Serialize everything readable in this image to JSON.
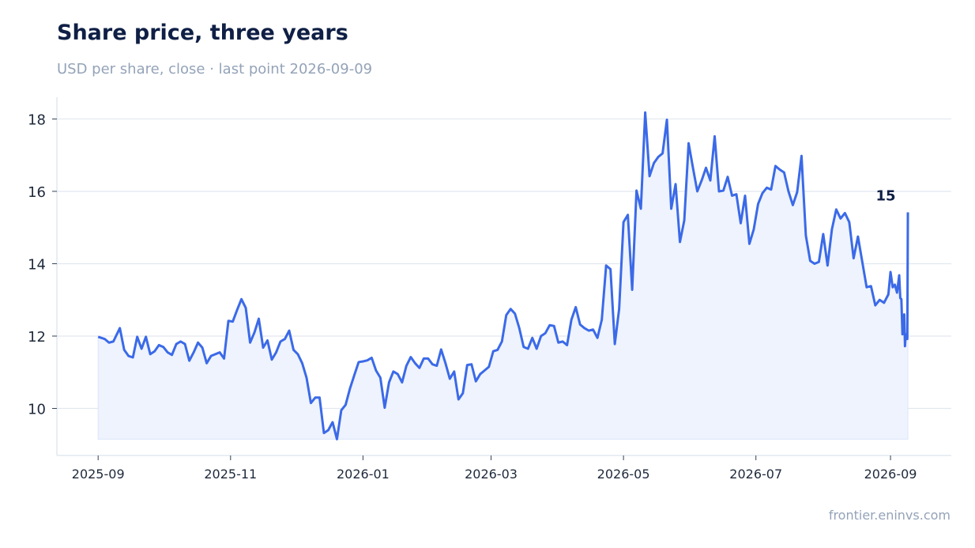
{
  "header": {
    "title": "Share price, three years",
    "subtitle": "USD per share, close · last point 2026-09-09"
  },
  "footer": {
    "source": "frontier.eninvs.com"
  },
  "colors": {
    "line": "#3b6ae8",
    "fill": "#eef3fd",
    "grid": "#e2e8f0",
    "axis": "#e2e8f0",
    "title": "#0f1f45",
    "muted": "#94a3b8"
  },
  "chart_data": {
    "type": "area",
    "title": "Share price, three years",
    "subtitle": "USD per share, close · last point 2026-09-09",
    "xlabel": "",
    "ylabel": "",
    "x_range": [
      "2025-08-13",
      "2026-09-29"
    ],
    "ylim": [
      8.7,
      18.6
    ],
    "y_ticks": [
      10,
      12,
      14,
      16,
      18
    ],
    "x_ticks": [
      "2025-09",
      "2025-11",
      "2026-01",
      "2026-03",
      "2026-05",
      "2026-07",
      "2026-09"
    ],
    "grid": "horizontal",
    "end_label": "15",
    "series": [
      {
        "values": [
          [
            "2025-09-01",
            11.98
          ],
          [
            "2025-09-04",
            11.92
          ],
          [
            "2025-09-06",
            11.82
          ],
          [
            "2025-09-08",
            11.85
          ],
          [
            "2025-09-11",
            12.22
          ],
          [
            "2025-09-13",
            11.62
          ],
          [
            "2025-09-15",
            11.45
          ],
          [
            "2025-09-17",
            11.41
          ],
          [
            "2025-09-19",
            11.98
          ],
          [
            "2025-09-21",
            11.65
          ],
          [
            "2025-09-23",
            11.98
          ],
          [
            "2025-09-25",
            11.5
          ],
          [
            "2025-09-27",
            11.58
          ],
          [
            "2025-09-29",
            11.75
          ],
          [
            "2025-10-01",
            11.7
          ],
          [
            "2025-10-03",
            11.55
          ],
          [
            "2025-10-05",
            11.48
          ],
          [
            "2025-10-07",
            11.78
          ],
          [
            "2025-10-09",
            11.85
          ],
          [
            "2025-10-11",
            11.78
          ],
          [
            "2025-10-13",
            11.32
          ],
          [
            "2025-10-15",
            11.55
          ],
          [
            "2025-10-17",
            11.82
          ],
          [
            "2025-10-19",
            11.68
          ],
          [
            "2025-10-21",
            11.25
          ],
          [
            "2025-10-23",
            11.45
          ],
          [
            "2025-10-25",
            11.5
          ],
          [
            "2025-10-27",
            11.55
          ],
          [
            "2025-10-29",
            11.38
          ],
          [
            "2025-10-31",
            12.42
          ],
          [
            "2025-11-02",
            12.4
          ],
          [
            "2025-11-04",
            12.72
          ],
          [
            "2025-11-06",
            13.02
          ],
          [
            "2025-11-08",
            12.78
          ],
          [
            "2025-11-10",
            11.82
          ],
          [
            "2025-11-12",
            12.1
          ],
          [
            "2025-11-14",
            12.48
          ],
          [
            "2025-11-16",
            11.68
          ],
          [
            "2025-11-18",
            11.88
          ],
          [
            "2025-11-20",
            11.35
          ],
          [
            "2025-11-22",
            11.55
          ],
          [
            "2025-11-24",
            11.85
          ],
          [
            "2025-11-26",
            11.92
          ],
          [
            "2025-11-28",
            12.15
          ],
          [
            "2025-11-30",
            11.62
          ],
          [
            "2025-12-02",
            11.5
          ],
          [
            "2025-12-04",
            11.25
          ],
          [
            "2025-12-06",
            10.85
          ],
          [
            "2025-12-08",
            10.15
          ],
          [
            "2025-12-10",
            10.3
          ],
          [
            "2025-12-12",
            10.3
          ],
          [
            "2025-12-14",
            9.32
          ],
          [
            "2025-12-16",
            9.4
          ],
          [
            "2025-12-18",
            9.62
          ],
          [
            "2025-12-20",
            9.15
          ],
          [
            "2025-12-22",
            9.95
          ],
          [
            "2025-12-24",
            10.1
          ],
          [
            "2025-12-26",
            10.55
          ],
          [
            "2025-12-28",
            10.92
          ],
          [
            "2025-12-30",
            11.28
          ],
          [
            "2026-01-01",
            11.3
          ],
          [
            "2026-01-03",
            11.33
          ],
          [
            "2026-01-05",
            11.4
          ],
          [
            "2026-01-07",
            11.05
          ],
          [
            "2026-01-09",
            10.85
          ],
          [
            "2026-01-11",
            10.02
          ],
          [
            "2026-01-13",
            10.72
          ],
          [
            "2026-01-15",
            11.02
          ],
          [
            "2026-01-17",
            10.95
          ],
          [
            "2026-01-19",
            10.72
          ],
          [
            "2026-01-21",
            11.18
          ],
          [
            "2026-01-23",
            11.42
          ],
          [
            "2026-01-25",
            11.25
          ],
          [
            "2026-01-27",
            11.12
          ],
          [
            "2026-01-29",
            11.38
          ],
          [
            "2026-01-31",
            11.38
          ],
          [
            "2026-02-02",
            11.22
          ],
          [
            "2026-02-04",
            11.18
          ],
          [
            "2026-02-06",
            11.63
          ],
          [
            "2026-02-08",
            11.25
          ],
          [
            "2026-02-10",
            10.82
          ],
          [
            "2026-02-12",
            11.02
          ],
          [
            "2026-02-14",
            10.25
          ],
          [
            "2026-02-16",
            10.42
          ],
          [
            "2026-02-18",
            11.2
          ],
          [
            "2026-02-20",
            11.22
          ],
          [
            "2026-02-22",
            10.75
          ],
          [
            "2026-02-24",
            10.95
          ],
          [
            "2026-02-26",
            11.05
          ],
          [
            "2026-02-28",
            11.15
          ],
          [
            "2026-03-02",
            11.58
          ],
          [
            "2026-03-04",
            11.62
          ],
          [
            "2026-03-06",
            11.85
          ],
          [
            "2026-03-08",
            12.58
          ],
          [
            "2026-03-10",
            12.75
          ],
          [
            "2026-03-12",
            12.62
          ],
          [
            "2026-03-14",
            12.22
          ],
          [
            "2026-03-16",
            11.7
          ],
          [
            "2026-03-18",
            11.65
          ],
          [
            "2026-03-20",
            11.95
          ],
          [
            "2026-03-22",
            11.65
          ],
          [
            "2026-03-24",
            12.0
          ],
          [
            "2026-03-26",
            12.08
          ],
          [
            "2026-03-28",
            12.3
          ],
          [
            "2026-03-30",
            12.28
          ],
          [
            "2026-04-01",
            11.82
          ],
          [
            "2026-04-03",
            11.85
          ],
          [
            "2026-04-05",
            11.75
          ],
          [
            "2026-04-07",
            12.45
          ],
          [
            "2026-04-09",
            12.8
          ],
          [
            "2026-04-11",
            12.32
          ],
          [
            "2026-04-13",
            12.22
          ],
          [
            "2026-04-15",
            12.15
          ],
          [
            "2026-04-17",
            12.18
          ],
          [
            "2026-04-19",
            11.95
          ],
          [
            "2026-04-21",
            12.45
          ],
          [
            "2026-04-23",
            13.95
          ],
          [
            "2026-04-25",
            13.85
          ],
          [
            "2026-04-27",
            11.78
          ],
          [
            "2026-04-29",
            12.75
          ],
          [
            "2026-05-01",
            15.15
          ],
          [
            "2026-05-03",
            15.35
          ],
          [
            "2026-05-05",
            13.28
          ],
          [
            "2026-05-07",
            16.02
          ],
          [
            "2026-05-09",
            15.52
          ],
          [
            "2026-05-11",
            18.18
          ],
          [
            "2026-05-13",
            16.42
          ],
          [
            "2026-05-15",
            16.78
          ],
          [
            "2026-05-17",
            16.95
          ],
          [
            "2026-05-19",
            17.05
          ],
          [
            "2026-05-21",
            17.98
          ],
          [
            "2026-05-23",
            15.52
          ],
          [
            "2026-05-25",
            16.2
          ],
          [
            "2026-05-27",
            14.6
          ],
          [
            "2026-05-29",
            15.2
          ],
          [
            "2026-05-31",
            17.33
          ],
          [
            "2026-06-02",
            16.65
          ],
          [
            "2026-06-04",
            16.0
          ],
          [
            "2026-06-06",
            16.3
          ],
          [
            "2026-06-08",
            16.65
          ],
          [
            "2026-06-10",
            16.3
          ],
          [
            "2026-06-12",
            17.52
          ],
          [
            "2026-06-14",
            16.0
          ],
          [
            "2026-06-16",
            16.02
          ],
          [
            "2026-06-18",
            16.4
          ],
          [
            "2026-06-20",
            15.88
          ],
          [
            "2026-06-22",
            15.92
          ],
          [
            "2026-06-24",
            15.12
          ],
          [
            "2026-06-26",
            15.88
          ],
          [
            "2026-06-28",
            14.55
          ],
          [
            "2026-06-30",
            14.95
          ],
          [
            "2026-07-02",
            15.65
          ],
          [
            "2026-07-04",
            15.95
          ],
          [
            "2026-07-06",
            16.1
          ],
          [
            "2026-07-08",
            16.05
          ],
          [
            "2026-07-10",
            16.7
          ],
          [
            "2026-07-12",
            16.6
          ],
          [
            "2026-07-14",
            16.52
          ],
          [
            "2026-07-16",
            16.0
          ],
          [
            "2026-07-18",
            15.62
          ],
          [
            "2026-07-20",
            15.98
          ],
          [
            "2026-07-22",
            16.98
          ],
          [
            "2026-07-24",
            14.78
          ],
          [
            "2026-07-26",
            14.08
          ],
          [
            "2026-07-28",
            14.0
          ],
          [
            "2026-07-30",
            14.05
          ],
          [
            "2026-08-01",
            14.82
          ],
          [
            "2026-08-03",
            13.95
          ],
          [
            "2026-08-05",
            14.95
          ],
          [
            "2026-08-07",
            15.5
          ],
          [
            "2026-08-09",
            15.25
          ],
          [
            "2026-08-11",
            15.4
          ],
          [
            "2026-08-13",
            15.15
          ],
          [
            "2026-08-15",
            14.15
          ],
          [
            "2026-08-17",
            14.75
          ],
          [
            "2026-08-19",
            14.05
          ],
          [
            "2026-08-21",
            13.35
          ],
          [
            "2026-08-23",
            13.38
          ],
          [
            "2026-08-25",
            12.85
          ],
          [
            "2026-08-27",
            13.0
          ],
          [
            "2026-08-29",
            12.92
          ],
          [
            "2026-08-31",
            13.15
          ],
          [
            "2026-09-01",
            13.77
          ],
          [
            "2026-09-02",
            13.35
          ],
          [
            "2026-09-03",
            13.42
          ],
          [
            "2026-09-04",
            13.2
          ],
          [
            "2026-09-05",
            13.68
          ],
          [
            "2026-09-05",
            13.05
          ],
          [
            "2026-09-06",
            13.02
          ],
          [
            "2026-09-06",
            12.05
          ],
          [
            "2026-09-07",
            12.45
          ],
          [
            "2026-09-07",
            12.6
          ],
          [
            "2026-09-07",
            11.72
          ],
          [
            "2026-09-08",
            12.05
          ],
          [
            "2026-09-08",
            12.02
          ],
          [
            "2026-09-08",
            11.92
          ],
          [
            "2026-09-08",
            11.92
          ],
          [
            "2026-09-09",
            15.42
          ]
        ]
      }
    ]
  }
}
